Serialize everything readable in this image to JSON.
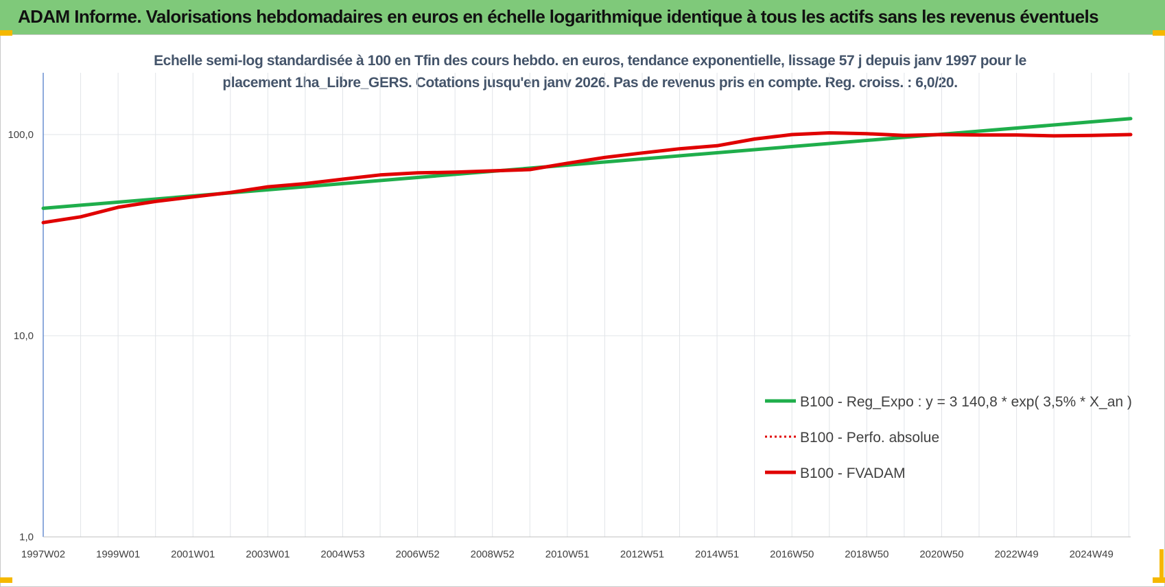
{
  "header": {
    "title": "ADAM Informe. Valorisations hebdomadaires en euros en échelle logarithmique identique à tous les actifs sans les revenus éventuels"
  },
  "chart_data": {
    "type": "line",
    "title_line1": "Echelle semi-log standardisée à 100 en Tfin des cours hebdo. en euros, tendance exponentielle, lissage 57 j depuis janv 1997 pour le",
    "title_line2": "placement 1ha_Libre_GERS. Cotations jusqu'en janv 2026.  Pas de revenus pris en compte. Reg. croiss. : 6,0/20.",
    "y_scale": "log",
    "ylim": [
      1,
      200
    ],
    "y_ticks": [
      {
        "value": 100,
        "label": "100,0"
      },
      {
        "value": 10,
        "label": "10,0"
      },
      {
        "value": 1,
        "label": "1,0"
      }
    ],
    "x_range": [
      1997.0,
      2026.05
    ],
    "x_ticks": [
      {
        "x": 1997.0,
        "label": "1997W02"
      },
      {
        "x": 1999.0,
        "label": "1999W01"
      },
      {
        "x": 2001.0,
        "label": "2001W01"
      },
      {
        "x": 2003.0,
        "label": "2003W01"
      },
      {
        "x": 2005.0,
        "label": "2004W53"
      },
      {
        "x": 2007.0,
        "label": "2006W52"
      },
      {
        "x": 2009.0,
        "label": "2008W52"
      },
      {
        "x": 2011.0,
        "label": "2010W51"
      },
      {
        "x": 2013.0,
        "label": "2012W51"
      },
      {
        "x": 2015.0,
        "label": "2014W51"
      },
      {
        "x": 2017.0,
        "label": "2016W50"
      },
      {
        "x": 2019.0,
        "label": "2018W50"
      },
      {
        "x": 2021.0,
        "label": "2020W50"
      },
      {
        "x": 2023.0,
        "label": "2022W49"
      },
      {
        "x": 2025.0,
        "label": "2024W49"
      }
    ],
    "grid": true,
    "legend_position": "lower-right",
    "series": [
      {
        "name": "B100 - Reg_Expo : y = 3 140,8 * exp( 3,5% *  X_an )",
        "color": "#1fae4b",
        "style": "solid",
        "x": [
          1997.0,
          2026.05
        ],
        "y": [
          43.0,
          120.0
        ]
      },
      {
        "name": "B100 - Perfo. absolue",
        "color": "#e00000",
        "style": "dotted",
        "x": [
          1997.0,
          1998.0,
          1999.0,
          2000.0,
          2001.0,
          2002.0,
          2003.0,
          2004.0,
          2005.0,
          2006.0,
          2007.0,
          2008.0,
          2009.0,
          2010.0,
          2011.0,
          2012.0,
          2013.0,
          2014.0,
          2015.0,
          2016.0,
          2017.0,
          2018.0,
          2019.0,
          2020.0,
          2021.0,
          2022.0,
          2023.0,
          2024.0,
          2025.0,
          2026.05
        ],
        "y": [
          36.5,
          39.0,
          43.5,
          46.5,
          49.0,
          51.5,
          55.0,
          57.0,
          60.0,
          63.0,
          64.5,
          65.0,
          66.0,
          67.0,
          72.0,
          77.0,
          81.0,
          85.0,
          88.0,
          95.0,
          100.0,
          102.0,
          101.0,
          99.0,
          100.0,
          99.5,
          99.5,
          98.5,
          99.0,
          100.0
        ]
      },
      {
        "name": "B100 - FVADAM",
        "color": "#e00000",
        "style": "solid",
        "x": [
          1997.0,
          1998.0,
          1999.0,
          2000.0,
          2001.0,
          2002.0,
          2003.0,
          2004.0,
          2005.0,
          2006.0,
          2007.0,
          2008.0,
          2009.0,
          2010.0,
          2011.0,
          2012.0,
          2013.0,
          2014.0,
          2015.0,
          2016.0,
          2017.0,
          2018.0,
          2019.0,
          2020.0,
          2021.0,
          2022.0,
          2023.0,
          2024.0,
          2025.0,
          2026.05
        ],
        "y": [
          36.5,
          39.0,
          43.5,
          46.5,
          49.0,
          51.5,
          55.0,
          57.0,
          60.0,
          63.0,
          64.5,
          65.0,
          66.0,
          67.0,
          72.0,
          77.0,
          81.0,
          85.0,
          88.0,
          95.0,
          100.0,
          102.0,
          101.0,
          99.0,
          100.0,
          99.5,
          99.5,
          98.5,
          99.0,
          100.0
        ]
      }
    ]
  }
}
